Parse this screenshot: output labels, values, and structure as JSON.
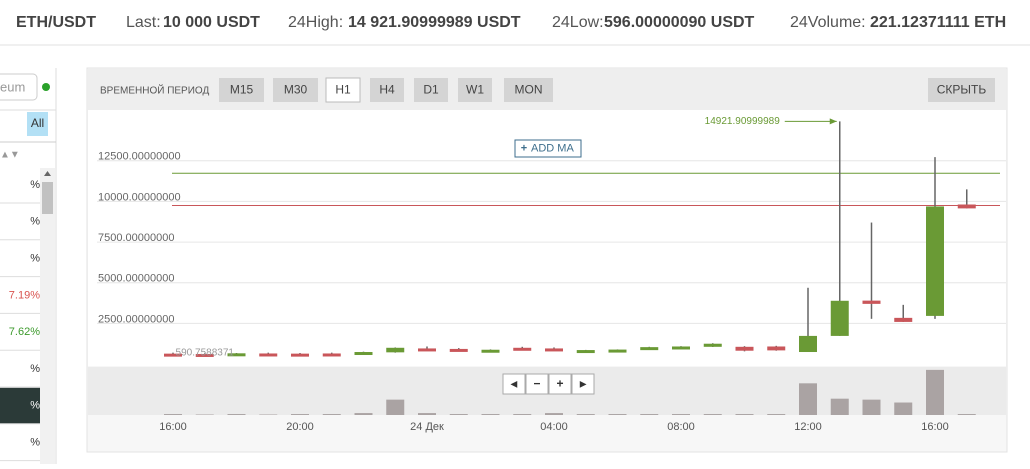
{
  "header": {
    "pair": "ETH/USDT",
    "last_label": "Last:",
    "last": "10 000 USDT",
    "high_label": "24High:",
    "high": "14 921.90999989 USDT",
    "low_label": "24Low:",
    "low": "596.00000090 USDT",
    "volume_label": "24Volume:",
    "volume": "221.12371111 ETH"
  },
  "sidebar": {
    "search": "eum",
    "filter": "All",
    "sort": "▲▼",
    "rows": [
      {
        "text": "%"
      },
      {
        "text": "%"
      },
      {
        "text": "%"
      },
      {
        "text": "7.19%",
        "color": "#d9534f"
      },
      {
        "text": "7.62%",
        "color": "#3c9a2c"
      },
      {
        "text": "%"
      },
      {
        "text": "%",
        "selected": true
      },
      {
        "text": "%"
      }
    ]
  },
  "toolbar": {
    "period_label": "ВРЕМЕННОЙ ПЕРИОД",
    "periods": [
      "M15",
      "M30",
      "H1",
      "H4",
      "D1",
      "W1",
      "MON"
    ],
    "active": 2,
    "hide": "СКРЫТЬ",
    "add_ma_icon": "+",
    "add_ma": "ADD MA"
  },
  "nav": [
    "◂",
    "−",
    "+",
    "▸"
  ],
  "chart": {
    "type": "candlestick",
    "categories": [
      "16:00",
      null,
      null,
      null,
      "20:00",
      null,
      null,
      null,
      "24 Дек",
      null,
      null,
      null,
      "04:00",
      null,
      null,
      null,
      "08:00",
      null,
      null,
      null,
      "12:00",
      null,
      null,
      null,
      "16:00",
      null
    ],
    "candles": [
      {
        "open": 640,
        "high": 700,
        "low": 600,
        "close": 600
      },
      {
        "open": 620,
        "high": 660,
        "low": 580,
        "close": 590
      },
      {
        "open": 600,
        "high": 680,
        "low": 590,
        "close": 660
      },
      {
        "open": 650,
        "high": 700,
        "low": 590.7588371,
        "close": 610
      },
      {
        "open": 640,
        "high": 680,
        "low": 600,
        "close": 610
      },
      {
        "open": 650,
        "high": 700,
        "low": 610,
        "close": 620
      },
      {
        "open": 640,
        "high": 760,
        "low": 630,
        "close": 740
      },
      {
        "open": 720,
        "high": 1020,
        "low": 700,
        "close": 1000
      },
      {
        "open": 960,
        "high": 1080,
        "low": 880,
        "close": 900
      },
      {
        "open": 930,
        "high": 980,
        "low": 860,
        "close": 880
      },
      {
        "open": 790,
        "high": 900,
        "low": 780,
        "close": 880
      },
      {
        "open": 1000,
        "high": 1060,
        "low": 920,
        "close": 930
      },
      {
        "open": 960,
        "high": 1020,
        "low": 880,
        "close": 900
      },
      {
        "open": 780,
        "high": 870,
        "low": 760,
        "close": 860
      },
      {
        "open": 800,
        "high": 900,
        "low": 790,
        "close": 890
      },
      {
        "open": 880,
        "high": 1060,
        "low": 870,
        "close": 1040
      },
      {
        "open": 960,
        "high": 1100,
        "low": 950,
        "close": 1080
      },
      {
        "open": 1060,
        "high": 1280,
        "low": 1050,
        "close": 1250
      },
      {
        "open": 1060,
        "high": 1100,
        "low": 780,
        "close": 820
      },
      {
        "open": 1080,
        "high": 1120,
        "low": 820,
        "close": 840
      },
      {
        "open": 740,
        "high": 4690,
        "low": 740,
        "close": 1730
      },
      {
        "open": 1730,
        "high": 14921.90999989,
        "low": 1730,
        "close": 3890
      },
      {
        "open": 3900,
        "high": 8700,
        "low": 2780,
        "close": 3700
      },
      {
        "open": 2840,
        "high": 3640,
        "low": 2590,
        "close": 2590
      },
      {
        "open": 2960,
        "high": 12720,
        "low": 2780,
        "close": 9690
      },
      {
        "open": 9810,
        "high": 10740,
        "low": 9570,
        "close": 9570
      }
    ],
    "volumes": [
      1,
      0.5,
      1,
      0.5,
      1,
      1,
      2,
      16,
      2,
      1,
      1,
      1,
      2,
      1,
      1,
      1,
      1,
      1,
      1,
      1,
      33,
      17,
      16,
      13,
      47,
      1
    ],
    "up_color": "#6a9a35",
    "down_color": "#c9565a",
    "volume_color": "#aaa3a3",
    "ylim": [
      -120,
      15620
    ],
    "yticks": [
      {
        "value": 2500,
        "label": "2500.00000000"
      },
      {
        "value": 5000,
        "label": "5000.00000000"
      },
      {
        "value": 7500,
        "label": "7500.00000000"
      },
      {
        "value": 10000,
        "label": "10000.00000000"
      },
      {
        "value": 12500,
        "label": "12500.00000000"
      }
    ],
    "vlim": [
      0,
      50
    ],
    "lines": [
      {
        "value": 11730,
        "color": "#6a9a35"
      },
      {
        "value": 9750,
        "color": "#c9565a"
      }
    ],
    "max_label": "14921.90999989",
    "min_label": "590.7588371",
    "grid": true
  }
}
